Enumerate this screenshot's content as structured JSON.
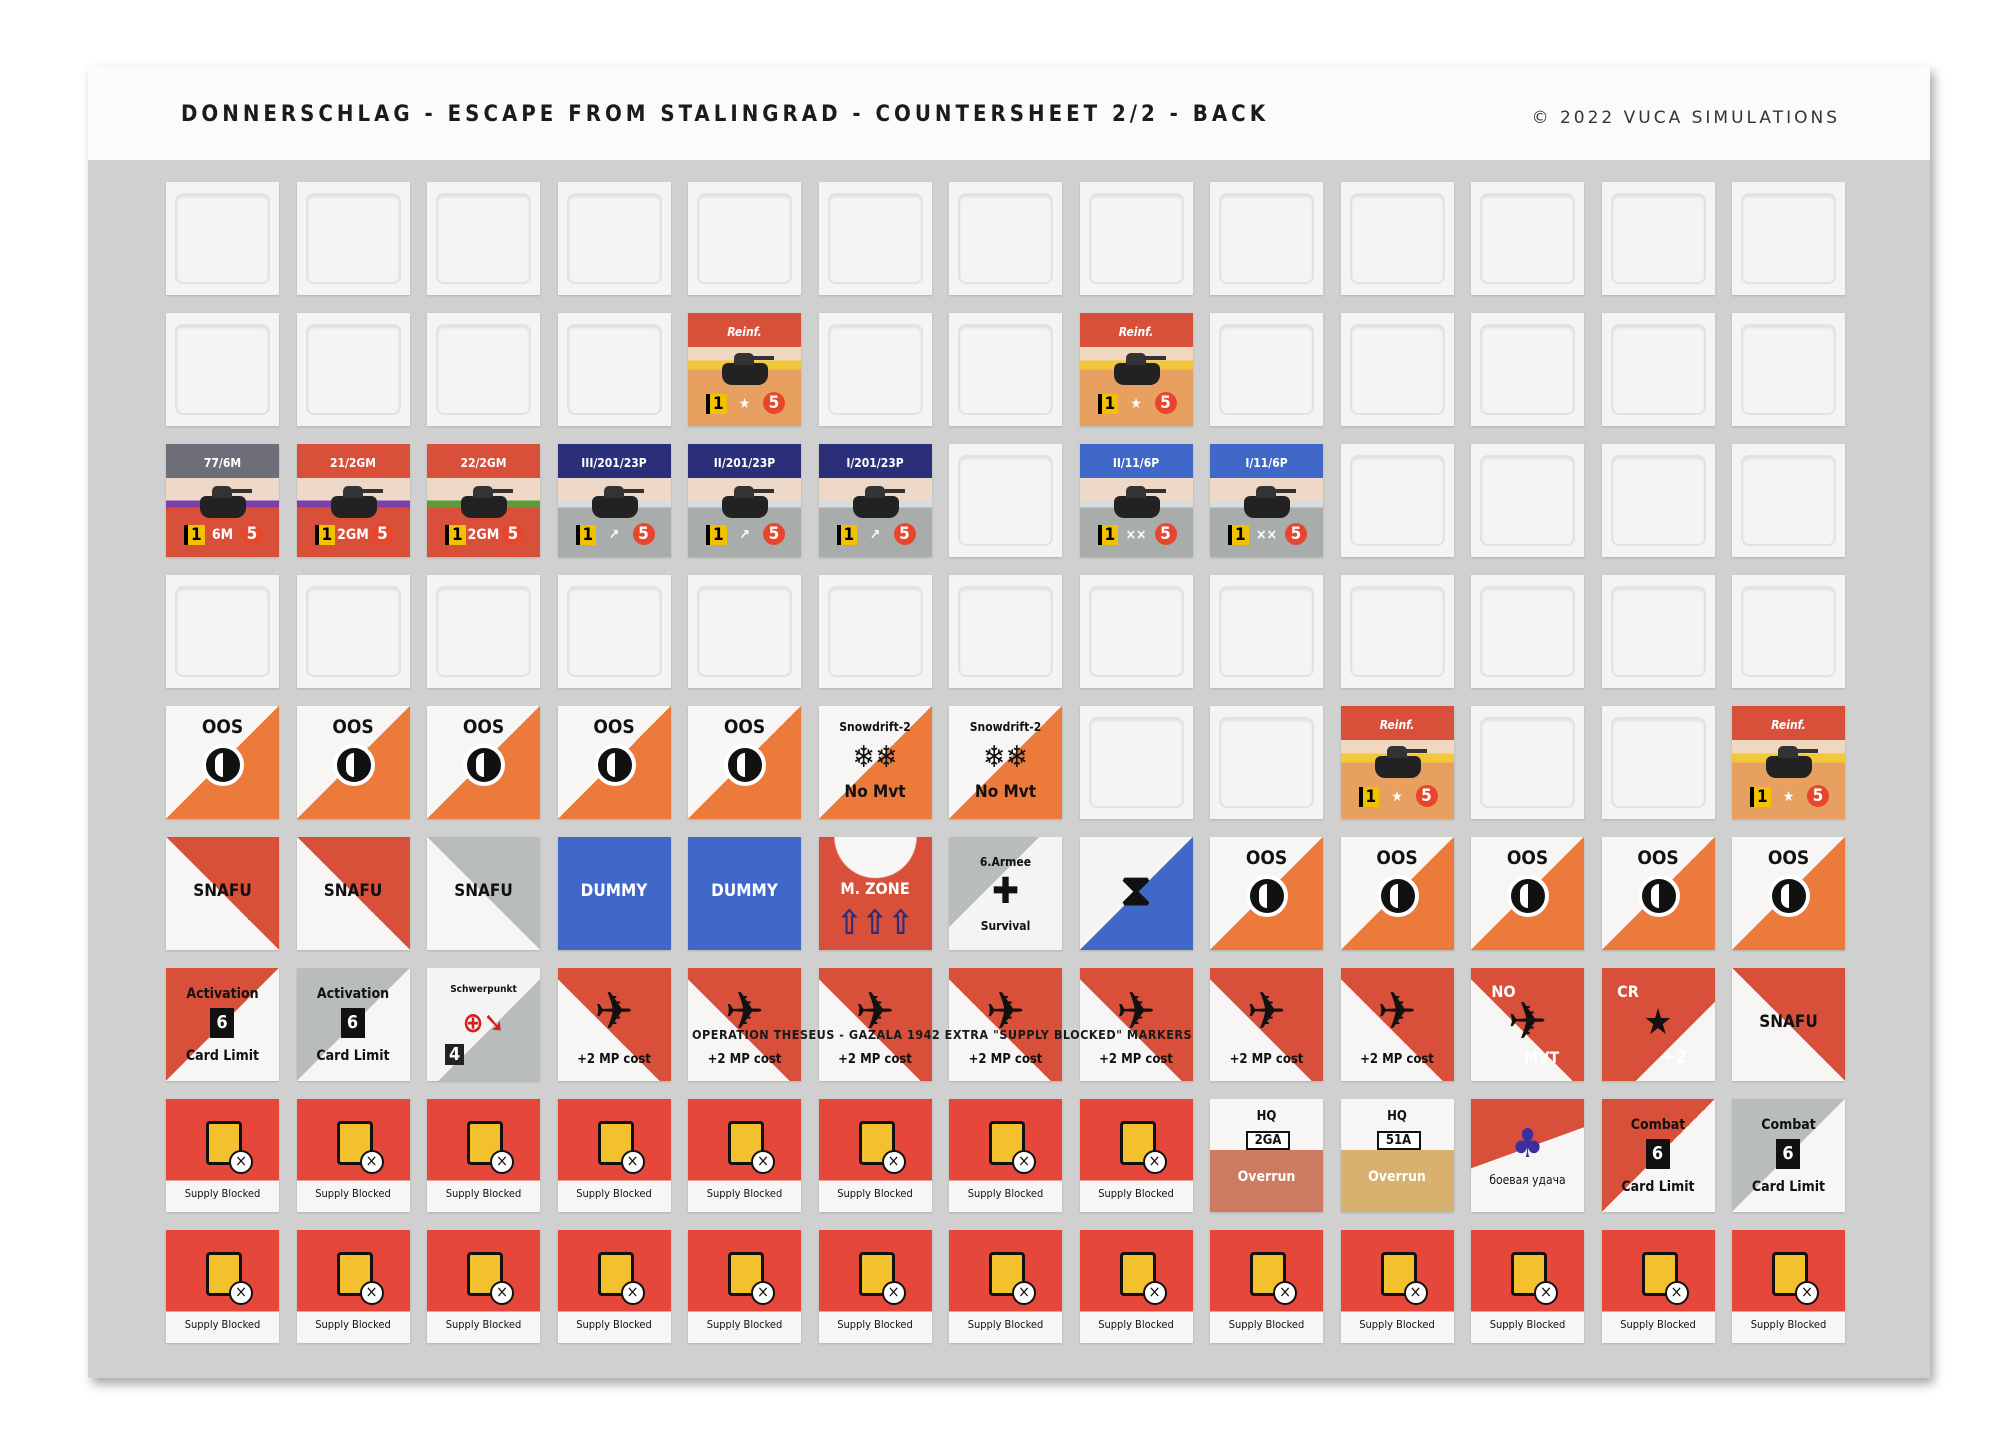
{
  "header": {
    "title": "DONNERSCHLAG - ESCAPE FROM STALINGRAD - COUNTERSHEET 2/2 - BACK",
    "copyright": "© 2022 VUCA SIMULATIONS"
  },
  "note": "OPERATION THESEUS - GAZALA 1942 EXTRA \"SUPPLY BLOCKED\" MARKERS",
  "palette": {
    "sheet": "#cfd0cf",
    "red": "#d9503a",
    "orange": "#ec7a3a",
    "navy": "#2b2f7a",
    "blue": "#3f68c9",
    "gray": "#b8bcbc",
    "tan": "#d8b070",
    "supply": "#e5473a"
  },
  "rows": [
    [
      {
        "type": "blank"
      },
      {
        "type": "blank"
      },
      {
        "type": "blank"
      },
      {
        "type": "blank"
      },
      {
        "type": "blank"
      },
      {
        "type": "blank"
      },
      {
        "type": "blank"
      },
      {
        "type": "blank"
      },
      {
        "type": "blank"
      },
      {
        "type": "blank"
      },
      {
        "type": "blank"
      },
      {
        "type": "blank"
      },
      {
        "type": "blank"
      }
    ],
    [
      {
        "type": "blank"
      },
      {
        "type": "blank"
      },
      {
        "type": "blank"
      },
      {
        "type": "blank"
      },
      {
        "type": "reinf",
        "label": "Reinf.",
        "a": "1",
        "m": "5",
        "icon": "star"
      },
      {
        "type": "blank"
      },
      {
        "type": "blank"
      },
      {
        "type": "reinf",
        "label": "Reinf.",
        "a": "1",
        "m": "5",
        "icon": "star"
      },
      {
        "type": "blank"
      },
      {
        "type": "blank"
      },
      {
        "type": "blank"
      },
      {
        "type": "blank"
      },
      {
        "type": "blank"
      }
    ],
    [
      {
        "type": "unit",
        "style": "gray-red",
        "label": "77/6M",
        "mid": "6M",
        "a": "1",
        "m": "5"
      },
      {
        "type": "unit",
        "style": "red-purple",
        "label": "21/2GM",
        "mid": "2GM",
        "a": "1",
        "m": "5"
      },
      {
        "type": "unit",
        "style": "red-green",
        "label": "22/2GM",
        "mid": "2GM",
        "a": "1",
        "m": "5"
      },
      {
        "type": "unit",
        "style": "navy",
        "label": "III/201/23P",
        "mid": "↗",
        "a": "1",
        "m": "5"
      },
      {
        "type": "unit",
        "style": "navy",
        "label": "II/201/23P",
        "mid": "↗",
        "a": "1",
        "m": "5"
      },
      {
        "type": "unit",
        "style": "navy",
        "label": "I/201/23P",
        "mid": "↗",
        "a": "1",
        "m": "5"
      },
      {
        "type": "blank"
      },
      {
        "type": "unit",
        "style": "blue",
        "label": "II/11/6P",
        "mid": "××",
        "a": "1",
        "m": "5"
      },
      {
        "type": "unit",
        "style": "blue",
        "label": "I/11/6P",
        "mid": "××",
        "a": "1",
        "m": "5"
      },
      {
        "type": "blank"
      },
      {
        "type": "blank"
      },
      {
        "type": "blank"
      },
      {
        "type": "blank"
      }
    ],
    [
      {
        "type": "blank"
      },
      {
        "type": "blank"
      },
      {
        "type": "blank"
      },
      {
        "type": "blank"
      },
      {
        "type": "blank"
      },
      {
        "type": "blank"
      },
      {
        "type": "blank"
      },
      {
        "type": "blank"
      },
      {
        "type": "blank"
      },
      {
        "type": "blank"
      },
      {
        "type": "blank"
      },
      {
        "type": "blank"
      },
      {
        "type": "blank"
      }
    ],
    [
      {
        "type": "oos",
        "label": "OOS"
      },
      {
        "type": "oos",
        "label": "OOS"
      },
      {
        "type": "oos",
        "label": "OOS"
      },
      {
        "type": "oos",
        "label": "OOS"
      },
      {
        "type": "oos",
        "label": "OOS"
      },
      {
        "type": "snow",
        "label": "Snowdrift-2",
        "sub": "No Mvt"
      },
      {
        "type": "snow",
        "label": "Snowdrift-2",
        "sub": "No Mvt"
      },
      {
        "type": "blank"
      },
      {
        "type": "blank"
      },
      {
        "type": "reinf",
        "label": "Reinf.",
        "a": "1",
        "m": "5",
        "icon": "star"
      },
      {
        "type": "blank"
      },
      {
        "type": "blank"
      },
      {
        "type": "reinf",
        "label": "Reinf.",
        "a": "1",
        "m": "5",
        "icon": "star"
      }
    ],
    [
      {
        "type": "snafu",
        "style": "red",
        "label": "SNAFU"
      },
      {
        "type": "snafu",
        "style": "red",
        "label": "SNAFU"
      },
      {
        "type": "snafu",
        "style": "gray",
        "label": "SNAFU"
      },
      {
        "type": "dummy",
        "label": "DUMMY"
      },
      {
        "type": "dummy",
        "label": "DUMMY"
      },
      {
        "type": "mzone",
        "label": "M. ZONE"
      },
      {
        "type": "survival",
        "label": "6.Armee",
        "sub": "Survival"
      },
      {
        "type": "hourglass"
      },
      {
        "type": "oos",
        "label": "OOS"
      },
      {
        "type": "oos",
        "label": "OOS"
      },
      {
        "type": "oos",
        "label": "OOS"
      },
      {
        "type": "oos",
        "label": "OOS"
      },
      {
        "type": "oos",
        "label": "OOS"
      }
    ],
    [
      {
        "type": "limit",
        "style": "red",
        "label": "Activation",
        "num": "6",
        "sub": "Card Limit"
      },
      {
        "type": "limit",
        "style": "gray",
        "label": "Activation",
        "num": "6",
        "sub": "Card Limit"
      },
      {
        "type": "schwer",
        "label": "Schwerpunkt",
        "num": "4"
      },
      {
        "type": "air",
        "sub": "+2 MP cost"
      },
      {
        "type": "air",
        "sub": "+2 MP cost"
      },
      {
        "type": "air",
        "sub": "+2 MP cost"
      },
      {
        "type": "air",
        "sub": "+2 MP cost"
      },
      {
        "type": "air",
        "sub": "+2 MP cost"
      },
      {
        "type": "air",
        "sub": "+2 MP cost"
      },
      {
        "type": "air",
        "sub": "+2 MP cost"
      },
      {
        "type": "noair",
        "label": "NO",
        "sub": "MVT"
      },
      {
        "type": "cr",
        "label": "CR",
        "sub": "+2"
      },
      {
        "type": "snafu",
        "style": "red",
        "label": "SNAFU"
      }
    ],
    [
      {
        "type": "supply",
        "sub": "Supply Blocked"
      },
      {
        "type": "supply",
        "sub": "Supply Blocked"
      },
      {
        "type": "supply",
        "sub": "Supply Blocked"
      },
      {
        "type": "supply",
        "sub": "Supply Blocked"
      },
      {
        "type": "supply",
        "sub": "Supply Blocked"
      },
      {
        "type": "supply",
        "sub": "Supply Blocked"
      },
      {
        "type": "supply",
        "sub": "Supply Blocked"
      },
      {
        "type": "supply",
        "sub": "Supply Blocked"
      },
      {
        "type": "hq",
        "style": "red",
        "label": "HQ",
        "num": "2GA",
        "sub": "Overrun"
      },
      {
        "type": "hq",
        "style": "tan",
        "label": "HQ",
        "num": "51A",
        "sub": "Overrun"
      },
      {
        "type": "luck",
        "sub": "боевая удача"
      },
      {
        "type": "limit",
        "style": "red",
        "label": "Combat",
        "num": "6",
        "sub": "Card Limit"
      },
      {
        "type": "limit",
        "style": "gray",
        "label": "Combat",
        "num": "6",
        "sub": "Card Limit"
      }
    ],
    [
      {
        "type": "supply",
        "sub": "Supply Blocked"
      },
      {
        "type": "supply",
        "sub": "Supply Blocked"
      },
      {
        "type": "supply",
        "sub": "Supply Blocked"
      },
      {
        "type": "supply",
        "sub": "Supply Blocked"
      },
      {
        "type": "supply",
        "sub": "Supply Blocked"
      },
      {
        "type": "supply",
        "sub": "Supply Blocked"
      },
      {
        "type": "supply",
        "sub": "Supply Blocked"
      },
      {
        "type": "supply",
        "sub": "Supply Blocked"
      },
      {
        "type": "supply",
        "sub": "Supply Blocked"
      },
      {
        "type": "supply",
        "sub": "Supply Blocked"
      },
      {
        "type": "supply",
        "sub": "Supply Blocked"
      },
      {
        "type": "supply",
        "sub": "Supply Blocked"
      },
      {
        "type": "supply",
        "sub": "Supply Blocked"
      }
    ]
  ]
}
